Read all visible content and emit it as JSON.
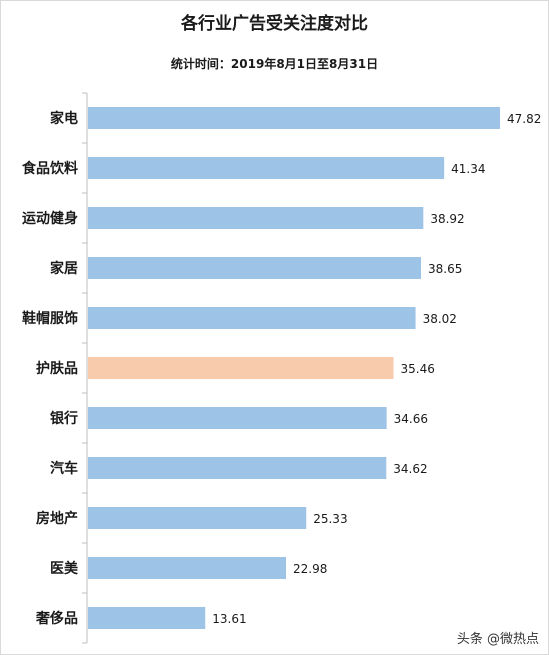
{
  "header": {
    "title": "各行业广告受关注度对比",
    "subtitle": "统计时间：2019年8月1日至8月31日"
  },
  "watermark": "头条 @微热点",
  "colors": {
    "bar_default": "#9dc3e6",
    "bar_highlight": "#f8cbad",
    "axis": "#bfbfbf"
  },
  "chart_data": {
    "type": "bar",
    "orientation": "horizontal",
    "title": "各行业广告受关注度对比",
    "subtitle": "统计时间：2019年8月1日至8月31日",
    "categories": [
      "家电",
      "食品饮料",
      "运动健身",
      "家居",
      "鞋帽服饰",
      "护肤品",
      "银行",
      "汽车",
      "房地产",
      "医美",
      "奢侈品"
    ],
    "values": [
      47.82,
      41.34,
      38.92,
      38.65,
      38.02,
      35.46,
      34.66,
      34.62,
      25.33,
      22.98,
      13.61
    ],
    "value_labels": [
      "47.82",
      "41.34",
      "38.92",
      "38.65",
      "38.02",
      "35.46",
      "34.66",
      "34.62",
      "25.33",
      "22.98",
      "13.61"
    ],
    "highlight_category": "护肤品",
    "xlim": [
      0,
      48
    ],
    "grid": false,
    "legend": "none"
  }
}
